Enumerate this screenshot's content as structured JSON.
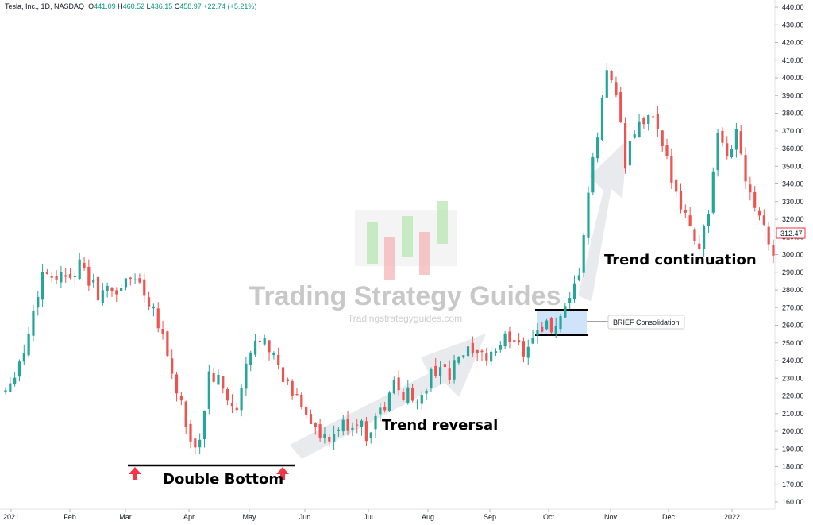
{
  "header": {
    "symbol": "Tesla, Inc., 1D, NASDAQ",
    "open_label": "O",
    "open": "441.09",
    "high_label": "H",
    "high": "460.52",
    "low_label": "L",
    "low": "436.15",
    "close_label": "C",
    "close": "458.97",
    "change": "+22.74 (+5.21%)"
  },
  "watermark": {
    "title": "Trading Strategy Guides",
    "url": "Tradingstrategyguides.com"
  },
  "annotations": {
    "double_bottom": "Double Bottom",
    "trend_reversal": "Trend reversal",
    "trend_continuation": "Trend continuation",
    "consolidation": "BRIEF Consolidation"
  },
  "last_price": "312.47",
  "colors": {
    "up": "#26a69a",
    "down": "#ef5350",
    "arrow": "#f23645",
    "consolidation_fill": "#cfe3fb",
    "trend_arrow": "#e6e8ec"
  },
  "chart_data": {
    "type": "candlestick",
    "y_axis": {
      "min": 160,
      "max": 440,
      "ticks": [
        "440.00",
        "430.00",
        "420.00",
        "410.00",
        "400.00",
        "390.00",
        "380.00",
        "370.00",
        "360.00",
        "350.00",
        "340.00",
        "330.00",
        "320.00",
        "310.00",
        "300.00",
        "290.00",
        "280.00",
        "270.00",
        "260.00",
        "250.00",
        "240.00",
        "230.00",
        "220.00",
        "210.00",
        "200.00",
        "190.00",
        "180.00",
        "170.00",
        "160.00"
      ]
    },
    "x_axis": {
      "labels": [
        "2021",
        "Feb",
        "Mar",
        "Apr",
        "May",
        "Jun",
        "Jul",
        "Aug",
        "Sep",
        "Oct",
        "Nov",
        "Dec",
        "2022"
      ]
    },
    "price_path": [
      [
        0,
        224
      ],
      [
        4,
        245
      ],
      [
        8,
        290
      ],
      [
        12,
        288
      ],
      [
        16,
        293
      ],
      [
        20,
        278
      ],
      [
        24,
        280
      ],
      [
        28,
        288
      ],
      [
        32,
        270
      ],
      [
        34,
        255
      ],
      [
        36,
        232
      ],
      [
        38,
        215
      ],
      [
        40,
        190
      ],
      [
        42,
        195
      ],
      [
        44,
        232
      ],
      [
        46,
        228
      ],
      [
        48,
        218
      ],
      [
        50,
        210
      ],
      [
        52,
        236
      ],
      [
        54,
        250
      ],
      [
        56,
        256
      ],
      [
        58,
        242
      ],
      [
        60,
        228
      ],
      [
        62,
        222
      ],
      [
        64,
        216
      ],
      [
        66,
        206
      ],
      [
        68,
        196
      ],
      [
        70,
        193
      ],
      [
        72,
        202
      ],
      [
        74,
        203
      ],
      [
        76,
        206
      ],
      [
        78,
        198
      ],
      [
        80,
        208
      ],
      [
        82,
        214
      ],
      [
        84,
        226
      ],
      [
        86,
        222
      ],
      [
        88,
        220
      ],
      [
        90,
        218
      ],
      [
        92,
        232
      ],
      [
        94,
        238
      ],
      [
        96,
        230
      ],
      [
        98,
        242
      ],
      [
        100,
        244
      ],
      [
        102,
        240
      ],
      [
        104,
        243
      ],
      [
        106,
        246
      ],
      [
        108,
        252
      ],
      [
        110,
        253
      ],
      [
        112,
        246
      ],
      [
        114,
        254
      ],
      [
        116,
        260
      ],
      [
        118,
        258
      ],
      [
        120,
        262
      ],
      [
        122,
        271
      ],
      [
        124,
        290
      ],
      [
        126,
        334
      ],
      [
        128,
        368
      ],
      [
        130,
        404
      ],
      [
        132,
        395
      ],
      [
        134,
        350
      ],
      [
        136,
        370
      ],
      [
        138,
        375
      ],
      [
        140,
        378
      ],
      [
        142,
        358
      ],
      [
        144,
        345
      ],
      [
        146,
        330
      ],
      [
        148,
        315
      ],
      [
        150,
        305
      ],
      [
        152,
        325
      ],
      [
        154,
        365
      ],
      [
        156,
        355
      ],
      [
        158,
        370
      ],
      [
        160,
        345
      ],
      [
        162,
        330
      ],
      [
        164,
        318
      ],
      [
        166,
        300
      ]
    ],
    "trading_days": 167,
    "annotations": [
      {
        "label": "Double Bottom",
        "type": "support_line",
        "level": 181.5
      },
      {
        "label": "Trend reversal",
        "type": "arrow"
      },
      {
        "label": "BRIEF Consolidation",
        "type": "range",
        "low": 254,
        "high": 268
      },
      {
        "label": "Trend continuation",
        "type": "arrow"
      }
    ]
  }
}
